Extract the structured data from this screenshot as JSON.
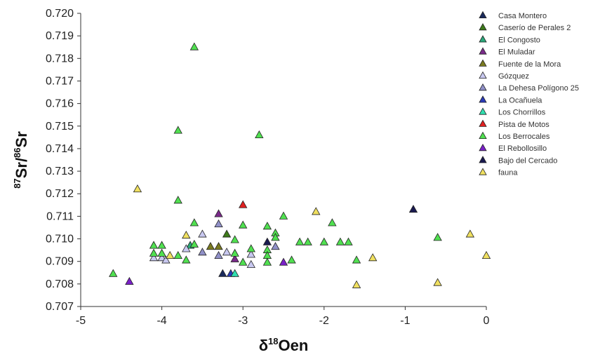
{
  "chart_data": {
    "type": "scatter",
    "xlabel": "δ18Oen",
    "ylabel": "87Sr/86Sr",
    "xlim": [
      -5,
      0
    ],
    "ylim": [
      0.707,
      0.72
    ],
    "x_ticks": [
      "-5",
      "-4",
      "-3",
      "-2",
      "-1",
      "0"
    ],
    "y_ticks": [
      "0.707",
      "0.708",
      "0.709",
      "0.710",
      "0.711",
      "0.712",
      "0.713",
      "0.714",
      "0.715",
      "0.716",
      "0.717",
      "0.718",
      "0.719",
      "0.720"
    ],
    "marker": "triangle",
    "grid": false,
    "legend_position": "top-right",
    "series": [
      {
        "name": "Casa Montero",
        "color": "#1a2a5c",
        "points": [
          [
            -3.25,
            0.70845
          ]
        ]
      },
      {
        "name": "Caserío de Perales 2",
        "color": "#3d7a1a",
        "points": [
          [
            -3.2,
            0.7102
          ]
        ]
      },
      {
        "name": "El Congosto",
        "color": "#2aa87a",
        "points": [
          [
            -3.65,
            0.7097
          ]
        ]
      },
      {
        "name": "El Muladar",
        "color": "#7a2a8a",
        "points": [
          [
            -3.3,
            0.7111
          ],
          [
            -3.1,
            0.7091
          ]
        ]
      },
      {
        "name": "Fuente de la Mora",
        "color": "#7a7a20",
        "points": [
          [
            -3.4,
            0.70965
          ],
          [
            -3.3,
            0.70965
          ]
        ]
      },
      {
        "name": "Gózquez",
        "color": "#c8c8f0",
        "points": [
          [
            -4.1,
            0.70915
          ],
          [
            -4.0,
            0.70915
          ],
          [
            -3.95,
            0.70905
          ],
          [
            -3.7,
            0.70955
          ],
          [
            -3.2,
            0.7094
          ],
          [
            -2.9,
            0.7093
          ],
          [
            -2.9,
            0.70885
          ],
          [
            -3.5,
            0.7102
          ]
        ]
      },
      {
        "name": "La Dehesa Polígono 25",
        "color": "#9090c8",
        "points": [
          [
            -3.3,
            0.71065
          ],
          [
            -3.5,
            0.7094
          ],
          [
            -2.6,
            0.70965
          ],
          [
            -3.3,
            0.70925
          ]
        ]
      },
      {
        "name": "La Ocañuela",
        "color": "#2a3ab8",
        "points": [
          [
            -3.15,
            0.70845
          ]
        ]
      },
      {
        "name": "Los Chorrillos",
        "color": "#30e0b0",
        "points": [
          [
            -3.1,
            0.70845
          ]
        ]
      },
      {
        "name": "Pista de Motos",
        "color": "#e02020",
        "points": [
          [
            -3.0,
            0.7115
          ]
        ]
      },
      {
        "name": "Los Berrocales",
        "color": "#50e050",
        "points": [
          [
            -3.6,
            0.7185
          ],
          [
            -3.8,
            0.7148
          ],
          [
            -2.8,
            0.7146
          ],
          [
            -3.8,
            0.7117
          ],
          [
            -3.6,
            0.7107
          ],
          [
            -3.0,
            0.7106
          ],
          [
            -2.5,
            0.711
          ],
          [
            -1.9,
            0.7107
          ],
          [
            -4.6,
            0.70845
          ],
          [
            -4.1,
            0.7097
          ],
          [
            -4.0,
            0.7097
          ],
          [
            -4.1,
            0.70935
          ],
          [
            -4.0,
            0.70935
          ],
          [
            -3.8,
            0.70925
          ],
          [
            -3.7,
            0.70905
          ],
          [
            -3.6,
            0.70975
          ],
          [
            -3.1,
            0.70995
          ],
          [
            -3.1,
            0.70935
          ],
          [
            -3.0,
            0.70895
          ],
          [
            -2.9,
            0.70955
          ],
          [
            -2.7,
            0.71055
          ],
          [
            -2.7,
            0.7095
          ],
          [
            -2.7,
            0.70925
          ],
          [
            -2.7,
            0.70895
          ],
          [
            -2.6,
            0.71025
          ],
          [
            -2.6,
            0.71005
          ],
          [
            -2.4,
            0.70905
          ],
          [
            -2.3,
            0.70985
          ],
          [
            -2.2,
            0.70985
          ],
          [
            -2.0,
            0.70985
          ],
          [
            -1.8,
            0.70985
          ],
          [
            -1.7,
            0.70985
          ],
          [
            -1.6,
            0.70905
          ],
          [
            -0.6,
            0.71005
          ]
        ]
      },
      {
        "name": "El Rebollosillo",
        "color": "#7a20c8",
        "points": [
          [
            -4.4,
            0.7081
          ],
          [
            -2.5,
            0.70895
          ]
        ]
      },
      {
        "name": "Bajo del Cercado",
        "color": "#1a1a50",
        "points": [
          [
            -0.9,
            0.7113
          ],
          [
            -2.7,
            0.70985
          ]
        ]
      },
      {
        "name": "fauna",
        "color": "#f0e060",
        "points": [
          [
            -4.3,
            0.7122
          ],
          [
            -3.9,
            0.70925
          ],
          [
            -3.7,
            0.71015
          ],
          [
            -2.1,
            0.7112
          ],
          [
            -1.6,
            0.70795
          ],
          [
            -1.4,
            0.70915
          ],
          [
            -0.6,
            0.70805
          ],
          [
            -0.2,
            0.7102
          ],
          [
            0.0,
            0.70925
          ]
        ]
      }
    ]
  }
}
